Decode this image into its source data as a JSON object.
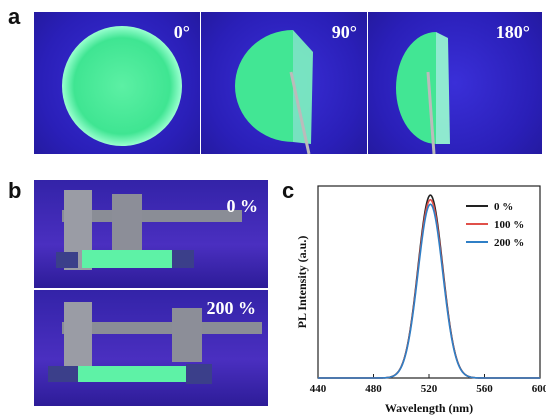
{
  "panels": {
    "a": {
      "letter": "a",
      "angles": [
        "0°",
        "90°",
        "180°"
      ]
    },
    "b": {
      "letter": "b",
      "strains": [
        "0 %",
        "200 %"
      ]
    },
    "c": {
      "letter": "c"
    }
  },
  "chart_data": {
    "type": "line",
    "xlabel": "Wavelength (nm)",
    "ylabel": "PL Intensity (a.u.)",
    "xlim": [
      440,
      600
    ],
    "xticks": [
      440,
      480,
      520,
      560,
      600
    ],
    "ylim": [
      0,
      1.05
    ],
    "legend_position": "top-right",
    "series": [
      {
        "name": "0 %",
        "color": "#222222",
        "peak": 521,
        "fwhm": 21,
        "amplitude": 1.0
      },
      {
        "name": "100 %",
        "color": "#e0504a",
        "peak": 521,
        "fwhm": 21,
        "amplitude": 0.975
      },
      {
        "name": "200 %",
        "color": "#2f7fc6",
        "peak": 521,
        "fwhm": 21,
        "amplitude": 0.95
      }
    ]
  }
}
